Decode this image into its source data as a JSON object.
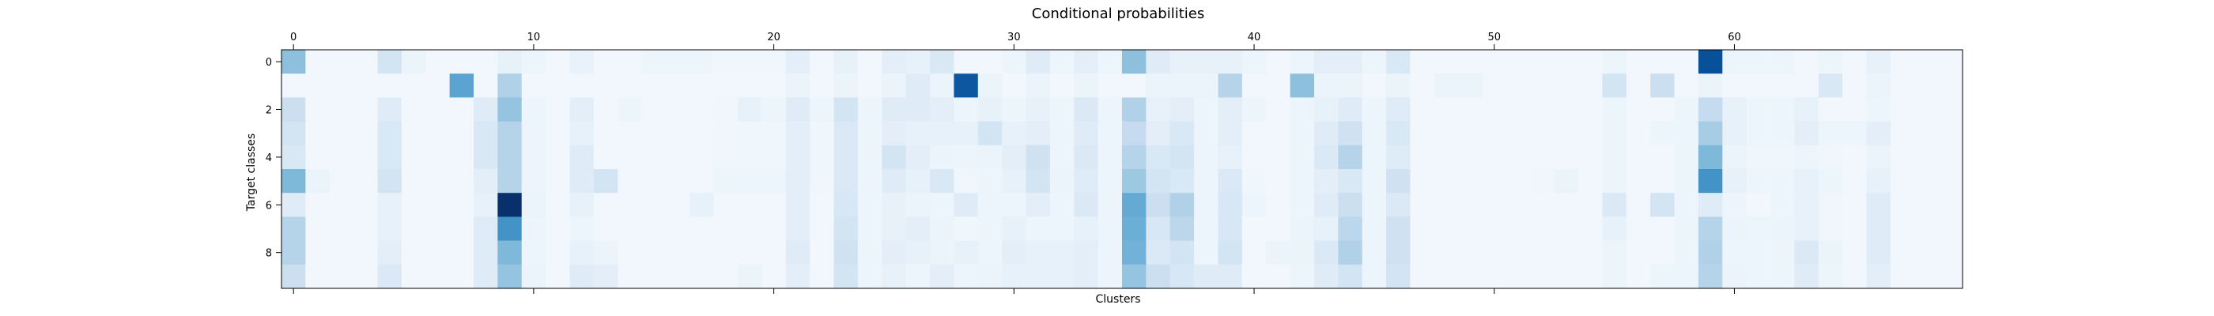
{
  "chart_data": {
    "type": "heatmap",
    "title": "Conditional probabilities",
    "xlabel": "Clusters",
    "ylabel": "Target classes",
    "x_tick_labels": [
      "0",
      "10",
      "20",
      "30",
      "40",
      "50",
      "60"
    ],
    "x_tick_values": [
      0,
      10,
      20,
      30,
      40,
      50,
      60
    ],
    "y_tick_labels": [
      "0",
      "2",
      "4",
      "6",
      "8"
    ],
    "y_tick_values": [
      0,
      2,
      4,
      6,
      8
    ],
    "x_tick_position": "top and bottom",
    "n_rows": 10,
    "n_cols": 70,
    "colormap": "Blues",
    "vmax": 1.0,
    "values": [
      [
        0.42,
        0.03,
        0.03,
        0.03,
        0.18,
        0.06,
        0.03,
        0.03,
        0.03,
        0.08,
        0.05,
        0.03,
        0.07,
        0.03,
        0.03,
        0.05,
        0.05,
        0.05,
        0.04,
        0.04,
        0.04,
        0.1,
        0.03,
        0.08,
        0.03,
        0.1,
        0.08,
        0.15,
        0.03,
        0.03,
        0.05,
        0.12,
        0.05,
        0.1,
        0.05,
        0.42,
        0.12,
        0.08,
        0.08,
        0.08,
        0.05,
        0.03,
        0.05,
        0.1,
        0.1,
        0.05,
        0.15,
        0.03,
        0.03,
        0.03,
        0.03,
        0.03,
        0.03,
        0.03,
        0.03,
        0.05,
        0.03,
        0.03,
        0.03,
        0.88,
        0.05,
        0.05,
        0.05,
        0.03,
        0.05,
        0.03,
        0.08,
        0.03,
        0.03,
        0.03
      ],
      [
        0.03,
        0.03,
        0.03,
        0.03,
        0.03,
        0.03,
        0.03,
        0.55,
        0.03,
        0.32,
        0.03,
        0.03,
        0.03,
        0.03,
        0.03,
        0.03,
        0.03,
        0.03,
        0.03,
        0.03,
        0.03,
        0.06,
        0.03,
        0.06,
        0.03,
        0.06,
        0.12,
        0.06,
        0.85,
        0.06,
        0.03,
        0.06,
        0.03,
        0.06,
        0.03,
        0.03,
        0.06,
        0.06,
        0.06,
        0.3,
        0.03,
        0.03,
        0.42,
        0.06,
        0.06,
        0.03,
        0.06,
        0.03,
        0.06,
        0.06,
        0.03,
        0.03,
        0.03,
        0.03,
        0.03,
        0.18,
        0.03,
        0.22,
        0.03,
        0.06,
        0.03,
        0.03,
        0.03,
        0.03,
        0.15,
        0.03,
        0.06,
        0.03,
        0.03,
        0.03
      ],
      [
        0.22,
        0.03,
        0.03,
        0.03,
        0.12,
        0.03,
        0.03,
        0.03,
        0.12,
        0.4,
        0.05,
        0.03,
        0.1,
        0.03,
        0.05,
        0.03,
        0.03,
        0.03,
        0.04,
        0.08,
        0.05,
        0.12,
        0.05,
        0.18,
        0.05,
        0.12,
        0.12,
        0.1,
        0.05,
        0.08,
        0.05,
        0.08,
        0.05,
        0.14,
        0.05,
        0.32,
        0.08,
        0.1,
        0.05,
        0.1,
        0.05,
        0.03,
        0.05,
        0.08,
        0.12,
        0.05,
        0.12,
        0.03,
        0.03,
        0.03,
        0.03,
        0.03,
        0.03,
        0.03,
        0.03,
        0.05,
        0.03,
        0.03,
        0.05,
        0.25,
        0.08,
        0.05,
        0.05,
        0.08,
        0.03,
        0.03,
        0.05,
        0.03,
        0.03,
        0.03
      ],
      [
        0.18,
        0.03,
        0.03,
        0.03,
        0.15,
        0.03,
        0.03,
        0.03,
        0.15,
        0.3,
        0.05,
        0.03,
        0.08,
        0.03,
        0.03,
        0.03,
        0.03,
        0.03,
        0.04,
        0.04,
        0.04,
        0.1,
        0.04,
        0.14,
        0.05,
        0.1,
        0.08,
        0.08,
        0.08,
        0.18,
        0.08,
        0.1,
        0.05,
        0.12,
        0.05,
        0.25,
        0.1,
        0.15,
        0.05,
        0.1,
        0.03,
        0.03,
        0.05,
        0.12,
        0.2,
        0.05,
        0.15,
        0.03,
        0.03,
        0.03,
        0.03,
        0.03,
        0.03,
        0.03,
        0.03,
        0.05,
        0.03,
        0.05,
        0.05,
        0.35,
        0.08,
        0.05,
        0.05,
        0.1,
        0.05,
        0.05,
        0.1,
        0.03,
        0.03,
        0.03
      ],
      [
        0.15,
        0.03,
        0.03,
        0.03,
        0.15,
        0.03,
        0.03,
        0.03,
        0.15,
        0.3,
        0.05,
        0.03,
        0.12,
        0.03,
        0.03,
        0.03,
        0.03,
        0.03,
        0.04,
        0.04,
        0.04,
        0.1,
        0.04,
        0.14,
        0.05,
        0.18,
        0.1,
        0.06,
        0.05,
        0.06,
        0.1,
        0.2,
        0.05,
        0.14,
        0.05,
        0.3,
        0.15,
        0.18,
        0.05,
        0.08,
        0.03,
        0.03,
        0.05,
        0.14,
        0.3,
        0.05,
        0.12,
        0.03,
        0.03,
        0.03,
        0.03,
        0.03,
        0.03,
        0.03,
        0.03,
        0.05,
        0.03,
        0.03,
        0.05,
        0.45,
        0.06,
        0.04,
        0.04,
        0.05,
        0.04,
        0.03,
        0.06,
        0.03,
        0.03,
        0.03
      ],
      [
        0.45,
        0.06,
        0.03,
        0.03,
        0.18,
        0.03,
        0.03,
        0.03,
        0.1,
        0.3,
        0.05,
        0.03,
        0.12,
        0.18,
        0.03,
        0.03,
        0.03,
        0.03,
        0.05,
        0.05,
        0.05,
        0.1,
        0.04,
        0.14,
        0.05,
        0.12,
        0.08,
        0.15,
        0.04,
        0.05,
        0.08,
        0.18,
        0.06,
        0.12,
        0.05,
        0.38,
        0.18,
        0.15,
        0.05,
        0.14,
        0.04,
        0.03,
        0.05,
        0.1,
        0.15,
        0.05,
        0.2,
        0.03,
        0.03,
        0.03,
        0.03,
        0.03,
        0.04,
        0.06,
        0.03,
        0.05,
        0.03,
        0.03,
        0.05,
        0.62,
        0.08,
        0.05,
        0.05,
        0.08,
        0.05,
        0.03,
        0.08,
        0.03,
        0.03,
        0.03
      ],
      [
        0.12,
        0.03,
        0.03,
        0.03,
        0.08,
        0.03,
        0.03,
        0.03,
        0.08,
        1.0,
        0.06,
        0.03,
        0.08,
        0.03,
        0.03,
        0.03,
        0.03,
        0.08,
        0.03,
        0.03,
        0.03,
        0.1,
        0.03,
        0.16,
        0.05,
        0.08,
        0.06,
        0.05,
        0.12,
        0.05,
        0.05,
        0.1,
        0.05,
        0.14,
        0.05,
        0.52,
        0.22,
        0.32,
        0.05,
        0.16,
        0.05,
        0.03,
        0.05,
        0.12,
        0.22,
        0.05,
        0.14,
        0.03,
        0.03,
        0.03,
        0.03,
        0.03,
        0.03,
        0.03,
        0.03,
        0.14,
        0.03,
        0.18,
        0.05,
        0.12,
        0.05,
        0.03,
        0.05,
        0.08,
        0.04,
        0.03,
        0.12,
        0.03,
        0.03,
        0.03
      ],
      [
        0.3,
        0.03,
        0.03,
        0.03,
        0.08,
        0.03,
        0.03,
        0.03,
        0.12,
        0.62,
        0.05,
        0.03,
        0.05,
        0.03,
        0.03,
        0.03,
        0.03,
        0.03,
        0.03,
        0.03,
        0.03,
        0.1,
        0.03,
        0.18,
        0.05,
        0.08,
        0.1,
        0.06,
        0.04,
        0.05,
        0.08,
        0.05,
        0.05,
        0.08,
        0.05,
        0.5,
        0.16,
        0.28,
        0.05,
        0.16,
        0.03,
        0.03,
        0.06,
        0.08,
        0.28,
        0.05,
        0.2,
        0.03,
        0.03,
        0.03,
        0.03,
        0.03,
        0.03,
        0.03,
        0.03,
        0.08,
        0.03,
        0.03,
        0.05,
        0.3,
        0.06,
        0.05,
        0.06,
        0.08,
        0.04,
        0.03,
        0.12,
        0.03,
        0.03,
        0.03
      ],
      [
        0.3,
        0.03,
        0.03,
        0.03,
        0.1,
        0.03,
        0.03,
        0.03,
        0.12,
        0.45,
        0.05,
        0.03,
        0.08,
        0.06,
        0.03,
        0.03,
        0.03,
        0.03,
        0.03,
        0.03,
        0.03,
        0.12,
        0.03,
        0.2,
        0.05,
        0.1,
        0.08,
        0.06,
        0.08,
        0.05,
        0.1,
        0.08,
        0.08,
        0.1,
        0.05,
        0.48,
        0.14,
        0.18,
        0.05,
        0.18,
        0.03,
        0.06,
        0.06,
        0.14,
        0.32,
        0.05,
        0.2,
        0.03,
        0.03,
        0.03,
        0.03,
        0.03,
        0.03,
        0.03,
        0.03,
        0.05,
        0.03,
        0.03,
        0.05,
        0.32,
        0.05,
        0.05,
        0.05,
        0.14,
        0.06,
        0.03,
        0.12,
        0.03,
        0.03,
        0.03
      ],
      [
        0.22,
        0.03,
        0.03,
        0.03,
        0.14,
        0.03,
        0.03,
        0.03,
        0.12,
        0.4,
        0.06,
        0.03,
        0.12,
        0.1,
        0.03,
        0.03,
        0.03,
        0.03,
        0.03,
        0.06,
        0.03,
        0.1,
        0.03,
        0.18,
        0.05,
        0.08,
        0.05,
        0.1,
        0.05,
        0.06,
        0.08,
        0.08,
        0.08,
        0.1,
        0.05,
        0.4,
        0.22,
        0.16,
        0.12,
        0.12,
        0.03,
        0.03,
        0.05,
        0.12,
        0.18,
        0.05,
        0.18,
        0.03,
        0.03,
        0.03,
        0.03,
        0.03,
        0.03,
        0.03,
        0.03,
        0.05,
        0.03,
        0.05,
        0.05,
        0.3,
        0.06,
        0.05,
        0.05,
        0.12,
        0.05,
        0.03,
        0.1,
        0.03,
        0.03,
        0.03
      ]
    ]
  }
}
